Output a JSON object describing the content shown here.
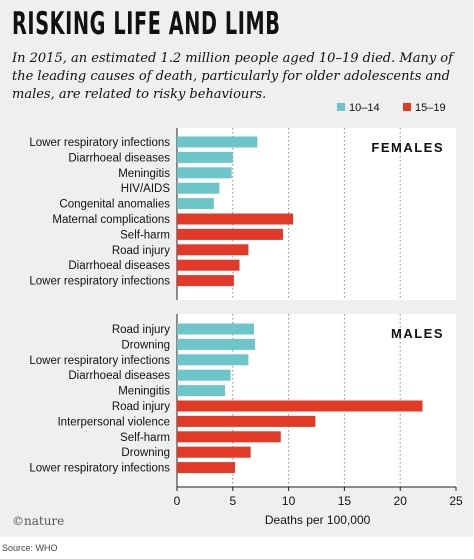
{
  "title": "RISKING LIFE AND LIMB",
  "subtitle": "In 2015, an estimated 1.2 million people aged 10–19 died. Many of the leading causes of death, particularly for older adolescents and males, are related to risky behaviours.",
  "credit": "©nature",
  "source": "Source: WHO",
  "colors": {
    "age_10_14": "#6cc5c9",
    "age_15_19": "#e23a26",
    "background": "#efefef",
    "text": "#111111"
  },
  "chart_data": {
    "type": "bar",
    "orientation": "horizontal",
    "legend": {
      "position": "top-right",
      "entries": [
        "10–14",
        "15–19"
      ]
    },
    "xlabel": "Deaths per 100,000",
    "xlim": [
      0,
      25
    ],
    "xticks": [
      0,
      5,
      10,
      15,
      20,
      25
    ],
    "grid": "vertical dotted",
    "panels": [
      {
        "name": "FEMALES",
        "groups": [
          {
            "age": "10–14",
            "categories": [
              "Lower respiratory infections",
              "Diarrhoeal diseases",
              "Meningitis",
              "HIV/AIDS",
              "Congenital anomalies"
            ],
            "values": [
              7.2,
              5.0,
              4.9,
              3.8,
              3.3
            ]
          },
          {
            "age": "15–19",
            "categories": [
              "Maternal complications",
              "Self-harm",
              "Road injury",
              "Diarrhoeal diseases",
              "Lower respiratory infections"
            ],
            "values": [
              10.4,
              9.5,
              6.4,
              5.6,
              5.1
            ]
          }
        ]
      },
      {
        "name": "MALES",
        "groups": [
          {
            "age": "10–14",
            "categories": [
              "Road injury",
              "Drowning",
              "Lower respiratory infections",
              "Diarrhoeal diseases",
              "Meningitis"
            ],
            "values": [
              6.9,
              7.0,
              6.4,
              4.8,
              4.3
            ]
          },
          {
            "age": "15–19",
            "categories": [
              "Road injury",
              "Interpersonal violence",
              "Self-harm",
              "Drowning",
              "Lower respiratory infections"
            ],
            "values": [
              22.0,
              12.4,
              9.3,
              6.6,
              5.2
            ]
          }
        ]
      }
    ]
  }
}
